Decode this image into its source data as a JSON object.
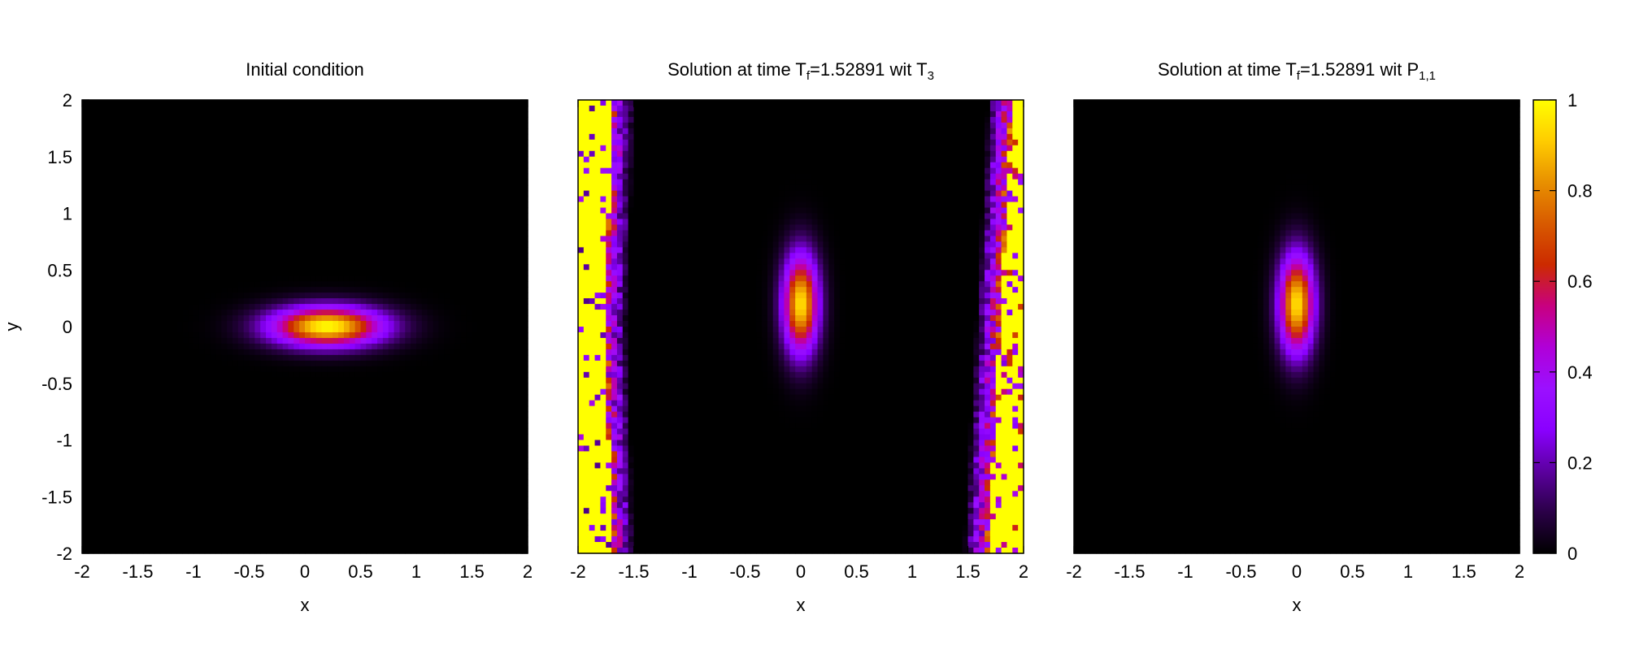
{
  "figure": {
    "colormap": [
      "#000000",
      "#2a0047",
      "#5c00a0",
      "#8a00ff",
      "#9b10ff",
      "#b000d8",
      "#c80080",
      "#cc2a00",
      "#d85a00",
      "#e89000",
      "#ffcc00",
      "#ffff00"
    ],
    "colorbar": {
      "range": [
        0,
        1
      ],
      "ticks": [
        0,
        0.2,
        0.4,
        0.6,
        0.8,
        1
      ],
      "tick_labels": [
        "0",
        "0.2",
        "0.4",
        "0.6",
        "0.8",
        "1"
      ]
    },
    "grid": false
  },
  "chart_data": [
    {
      "type": "heatmap",
      "title": "Initial condition",
      "title_sub": "",
      "title_tail": "",
      "xlabel": "x",
      "ylabel": "y",
      "xlim": [
        -2,
        2
      ],
      "ylim": [
        -2,
        2
      ],
      "xticks": [
        -2,
        -1.5,
        -1,
        -0.5,
        0,
        0.5,
        1,
        1.5,
        2
      ],
      "xtick_labels": [
        "-2",
        "-1.5",
        "-1",
        "-0.5",
        "0",
        "0.5",
        "1",
        "1.5",
        "2"
      ],
      "yticks": [
        -2,
        -1.5,
        -1,
        -0.5,
        0,
        0.5,
        1,
        1.5,
        2
      ],
      "ytick_labels": [
        "-2",
        "-1.5",
        "-1",
        "-0.5",
        "0",
        "0.5",
        "1",
        "1.5",
        "2"
      ],
      "field": {
        "kind": "gaussian",
        "center": [
          0.2,
          0
        ],
        "sigma": [
          0.35,
          0.12
        ],
        "peak": 1
      },
      "boundary_noise": false
    },
    {
      "type": "heatmap",
      "title": "Solution at time T",
      "title_sub": "f",
      "title_tail": "=1.52891 wit T",
      "title_tail_sub": "3",
      "xlabel": "x",
      "ylabel": "",
      "xlim": [
        -2,
        2
      ],
      "ylim": [
        -2,
        2
      ],
      "xticks": [
        -2,
        -1.5,
        -1,
        -0.5,
        0,
        0.5,
        1,
        1.5,
        2
      ],
      "xtick_labels": [
        "-2",
        "-1.5",
        "-1",
        "-0.5",
        "0",
        "0.5",
        "1",
        "1.5",
        "2"
      ],
      "yticks": [],
      "ytick_labels": [],
      "field": {
        "kind": "gaussian",
        "center": [
          0,
          0.2
        ],
        "sigma": [
          0.11,
          0.3
        ],
        "peak": 0.95
      },
      "boundary_noise": true
    },
    {
      "type": "heatmap",
      "title": "Solution at time T",
      "title_sub": "f",
      "title_tail": "=1.52891 wit P",
      "title_tail_sub": "1,1",
      "xlabel": "x",
      "ylabel": "",
      "xlim": [
        -2,
        2
      ],
      "ylim": [
        -2,
        2
      ],
      "xticks": [
        -2,
        -1.5,
        -1,
        -0.5,
        0,
        0.5,
        1,
        1.5,
        2
      ],
      "xtick_labels": [
        "-2",
        "-1.5",
        "-1",
        "-0.5",
        "0",
        "0.5",
        "1",
        "1.5",
        "2"
      ],
      "yticks": [],
      "ytick_labels": [],
      "field": {
        "kind": "gaussian",
        "center": [
          0,
          0.2
        ],
        "sigma": [
          0.11,
          0.3
        ],
        "peak": 0.95
      },
      "boundary_noise": false
    }
  ]
}
